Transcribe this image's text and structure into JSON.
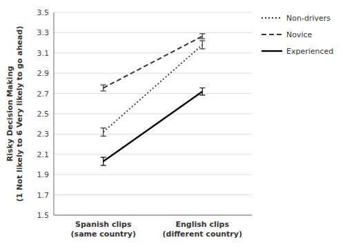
{
  "chart_data": {
    "type": "line",
    "y_label": "Risky Decision Making\n(1 Not likely to 6 Very likely to go ahead)",
    "categories": [
      "Spanish clips\n(same country)",
      "English clips\n(different country)"
    ],
    "series": [
      {
        "name": "Non-drivers",
        "color": "#333333",
        "line_style": "dotted",
        "values": [
          2.32,
          3.18
        ],
        "errors": [
          0.04,
          0.04
        ]
      },
      {
        "name": "Novice",
        "color": "#333333",
        "line_style": "dashed",
        "values": [
          2.755,
          3.265
        ],
        "errors": [
          0.03,
          0.025
        ]
      },
      {
        "name": "Experienced",
        "color": "#000000",
        "line_style": "solid",
        "values": [
          2.03,
          2.72
        ],
        "errors": [
          0.04,
          0.035
        ]
      }
    ],
    "ylim": [
      1.5,
      3.5
    ],
    "yticks": [
      1.5,
      1.7,
      1.9,
      2.1,
      2.3,
      2.5,
      2.7,
      2.9,
      3.1,
      3.3,
      3.5
    ],
    "grid": true,
    "legend": "right"
  }
}
